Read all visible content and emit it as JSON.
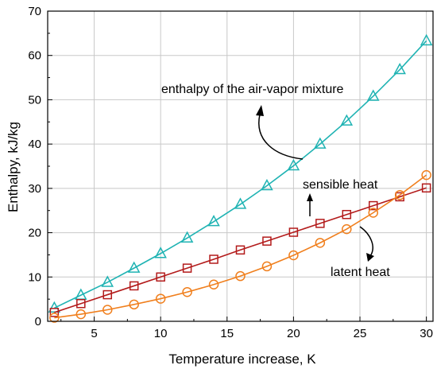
{
  "chart_data": {
    "type": "line",
    "xlabel": "Temperature increase, K",
    "ylabel": "Enthalpy, kJ/kg",
    "xlim": [
      1.5,
      30.5
    ],
    "ylim": [
      0,
      70
    ],
    "x_ticks": [
      5,
      10,
      15,
      20,
      25,
      30
    ],
    "y_ticks": [
      0,
      10,
      20,
      30,
      40,
      50,
      60,
      70
    ],
    "grid": true,
    "x": [
      2,
      4,
      6,
      8,
      10,
      12,
      14,
      16,
      18,
      20,
      22,
      24,
      26,
      28,
      30
    ],
    "series": [
      {
        "name": "enthalpy of the air-vapor mixture",
        "color": "#1fb3b3",
        "marker": "triangle",
        "values": [
          3.0,
          5.9,
          8.8,
          12.0,
          15.3,
          18.8,
          22.5,
          26.4,
          30.6,
          35.1,
          40.0,
          45.2,
          50.8,
          56.8,
          63.3
        ]
      },
      {
        "name": "sensible heat",
        "color": "#b31b1b",
        "marker": "square",
        "values": [
          2.0,
          4.0,
          6.0,
          8.0,
          10.0,
          12.0,
          14.0,
          16.1,
          18.1,
          20.1,
          22.1,
          24.1,
          26.1,
          28.1,
          30.1
        ]
      },
      {
        "name": "latent heat",
        "color": "#f07f1d",
        "marker": "circle",
        "values": [
          0.8,
          1.6,
          2.6,
          3.8,
          5.1,
          6.6,
          8.3,
          10.2,
          12.4,
          14.9,
          17.7,
          20.8,
          24.5,
          28.5,
          33.0
        ]
      }
    ]
  }
}
